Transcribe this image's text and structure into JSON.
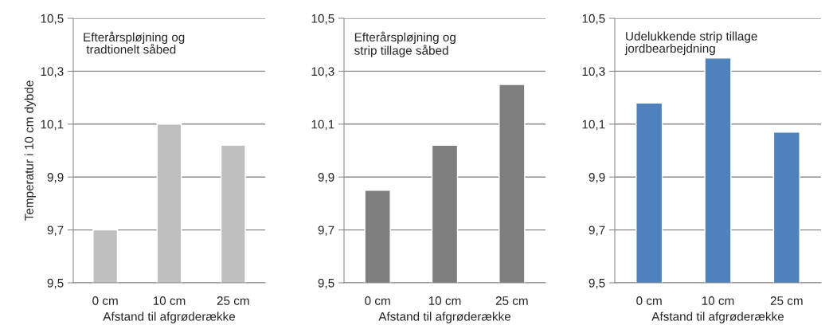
{
  "chart_data": [
    {
      "type": "bar",
      "title": "Efterårspløjning og\n tradtionelt såbed",
      "xlabel": "Afstand til afgrøderække",
      "ylabel": "Temperatur i 10 cm dybde",
      "categories": [
        "0 cm",
        "10 cm",
        "25 cm"
      ],
      "values": [
        9.7,
        10.1,
        10.02
      ],
      "color": "#bfbfbf",
      "ylim": [
        9.5,
        10.5
      ],
      "yticks": [
        {
          "value": 9.5,
          "label": "9,5"
        },
        {
          "value": 9.7,
          "label": "9,7"
        },
        {
          "value": 9.9,
          "label": "9,9"
        },
        {
          "value": 10.1,
          "label": "10,1"
        },
        {
          "value": 10.3,
          "label": "10,3"
        },
        {
          "value": 10.5,
          "label": "10,5"
        }
      ],
      "grid": "y",
      "legend": false
    },
    {
      "type": "bar",
      "title": "Efterårspløjning og\nstrip tillage såbed",
      "xlabel": "Afstand til afgrøderække",
      "categories": [
        "0 cm",
        "10 cm",
        "25 cm"
      ],
      "values": [
        9.85,
        10.02,
        10.25
      ],
      "color": "#7f7f7f",
      "ylim": [
        9.5,
        10.5
      ],
      "yticks": [
        {
          "value": 9.5,
          "label": "9,5"
        },
        {
          "value": 9.7,
          "label": "9,7"
        },
        {
          "value": 9.9,
          "label": "9,9"
        },
        {
          "value": 10.1,
          "label": "10,1"
        },
        {
          "value": 10.3,
          "label": "10,3"
        },
        {
          "value": 10.5,
          "label": "10,5"
        }
      ],
      "grid": "y",
      "legend": false
    },
    {
      "type": "bar",
      "title": "Udelukkende strip tillage\njordbearbejdning",
      "xlabel": "Afstand til afgrøderække",
      "categories": [
        "0 cm",
        "10 cm",
        "25 cm"
      ],
      "values": [
        10.18,
        10.35,
        10.07
      ],
      "color": "#4f81bd",
      "ylim": [
        9.5,
        10.5
      ],
      "yticks": [
        {
          "value": 9.5,
          "label": "9,5"
        },
        {
          "value": 9.7,
          "label": "9,7"
        },
        {
          "value": 9.9,
          "label": "9,9"
        },
        {
          "value": 10.1,
          "label": "10,1"
        },
        {
          "value": 10.3,
          "label": "10,3"
        },
        {
          "value": 10.5,
          "label": "10,5"
        }
      ],
      "grid": "y",
      "legend": false
    }
  ]
}
